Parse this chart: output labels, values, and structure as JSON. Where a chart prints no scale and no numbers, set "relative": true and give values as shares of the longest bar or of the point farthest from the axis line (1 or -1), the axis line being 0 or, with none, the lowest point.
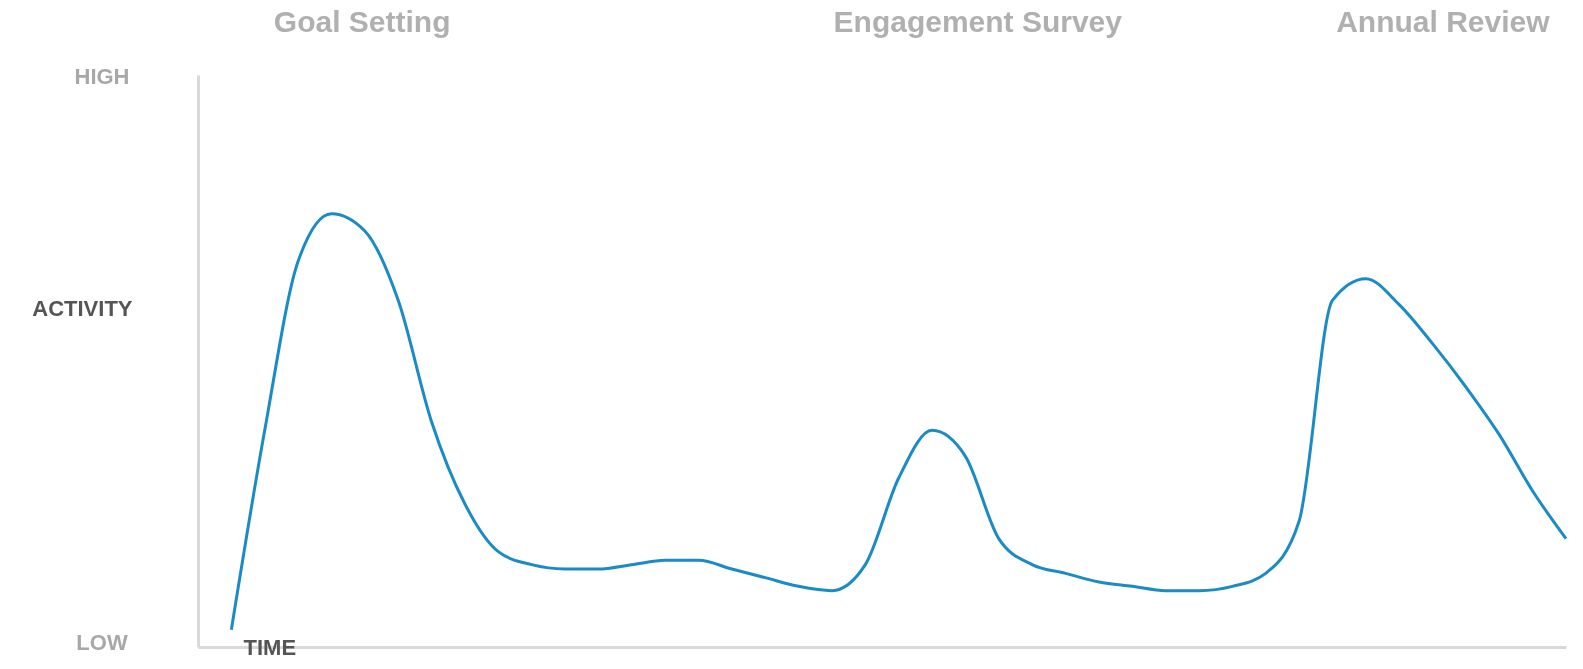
{
  "chart_data": {
    "type": "line",
    "relative": true,
    "xlabel": "TIME",
    "ylabel": "ACTIVITY",
    "color": "#1a8bc4",
    "annotations": [
      "Goal Setting",
      "Engagement Survey",
      "Annual Review",
      "HIGH",
      "LOW"
    ],
    "categories": [
      null,
      null,
      null,
      null,
      null,
      null,
      null,
      null,
      null,
      null,
      null,
      null,
      null,
      null,
      null,
      null,
      null,
      null,
      null,
      null,
      null,
      null,
      null,
      null,
      null,
      null,
      null,
      null,
      null,
      null,
      null,
      null,
      null,
      null,
      null,
      null,
      null,
      null,
      null,
      null,
      null
    ],
    "values": [
      0.04,
      0.5,
      0.89,
      1.0,
      0.96,
      0.8,
      0.52,
      0.33,
      0.22,
      0.19,
      0.18,
      0.18,
      0.19,
      0.2,
      0.2,
      0.18,
      0.16,
      0.14,
      0.13,
      0.19,
      0.39,
      0.5,
      0.44,
      0.25,
      0.19,
      0.17,
      0.15,
      0.14,
      0.13,
      0.13,
      0.14,
      0.17,
      0.29,
      0.8,
      0.85,
      0.79,
      0.7,
      0.6,
      0.49,
      0.36,
      0.25
    ]
  }
}
